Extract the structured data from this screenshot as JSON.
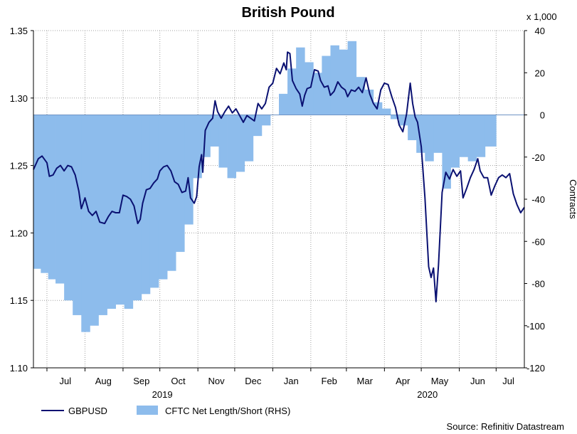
{
  "chart_data": {
    "type": "line",
    "title": "British Pound",
    "units_right": "x 1,000",
    "ylabel_right": "Contracts",
    "source": "Source: Refinitiv Datastream",
    "grid": true,
    "legend_position": "bottom-left",
    "colors": {
      "line": "#0a1172",
      "area": "#8dbcec",
      "grid": "#a0a0a0"
    },
    "years": [
      "2019",
      "2020"
    ],
    "months": [
      "Jul",
      "Aug",
      "Sep",
      "Oct",
      "Nov",
      "Dec",
      "Jan",
      "Feb",
      "Mar",
      "Apr",
      "May",
      "Jun",
      "Jul"
    ],
    "x_range": [
      "2019-06-20",
      "2020-07-24"
    ],
    "yleft": {
      "min": 1.1,
      "max": 1.35,
      "ticks": [
        "1.35",
        "1.30",
        "1.25",
        "1.20",
        "1.15",
        "1.10"
      ]
    },
    "yright": {
      "min": -120,
      "max": 40,
      "ticks": [
        "40",
        "20",
        "0",
        "-20",
        "-40",
        "-60",
        "-80",
        "-100",
        "-120"
      ]
    },
    "series": [
      {
        "name": "GBPUSD",
        "type": "line",
        "axis": "left",
        "points": [
          [
            "2019-06-20",
            1.247
          ],
          [
            "2019-06-24",
            1.255
          ],
          [
            "2019-06-27",
            1.257
          ],
          [
            "2019-07-01",
            1.252
          ],
          [
            "2019-07-03",
            1.242
          ],
          [
            "2019-07-06",
            1.243
          ],
          [
            "2019-07-09",
            1.248
          ],
          [
            "2019-07-12",
            1.25
          ],
          [
            "2019-07-15",
            1.246
          ],
          [
            "2019-07-18",
            1.25
          ],
          [
            "2019-07-21",
            1.249
          ],
          [
            "2019-07-24",
            1.243
          ],
          [
            "2019-07-27",
            1.231
          ],
          [
            "2019-07-29",
            1.218
          ],
          [
            "2019-08-01",
            1.226
          ],
          [
            "2019-08-04",
            1.216
          ],
          [
            "2019-08-07",
            1.213
          ],
          [
            "2019-08-10",
            1.216
          ],
          [
            "2019-08-13",
            1.208
          ],
          [
            "2019-08-17",
            1.207
          ],
          [
            "2019-08-20",
            1.212
          ],
          [
            "2019-08-23",
            1.216
          ],
          [
            "2019-08-26",
            1.215
          ],
          [
            "2019-08-29",
            1.215
          ],
          [
            "2019-09-01",
            1.228
          ],
          [
            "2019-09-04",
            1.227
          ],
          [
            "2019-09-07",
            1.225
          ],
          [
            "2019-09-10",
            1.22
          ],
          [
            "2019-09-13",
            1.207
          ],
          [
            "2019-09-15",
            1.21
          ],
          [
            "2019-09-17",
            1.222
          ],
          [
            "2019-09-20",
            1.232
          ],
          [
            "2019-09-23",
            1.233
          ],
          [
            "2019-09-26",
            1.237
          ],
          [
            "2019-09-29",
            1.24
          ],
          [
            "2019-10-01",
            1.246
          ],
          [
            "2019-10-04",
            1.249
          ],
          [
            "2019-10-07",
            1.25
          ],
          [
            "2019-10-10",
            1.246
          ],
          [
            "2019-10-13",
            1.238
          ],
          [
            "2019-10-16",
            1.236
          ],
          [
            "2019-10-19",
            1.23
          ],
          [
            "2019-10-22",
            1.231
          ],
          [
            "2019-10-24",
            1.241
          ],
          [
            "2019-10-26",
            1.226
          ],
          [
            "2019-10-29",
            1.222
          ],
          [
            "2019-10-31",
            1.227
          ],
          [
            "2019-11-02",
            1.249
          ],
          [
            "2019-11-04",
            1.258
          ],
          [
            "2019-11-05",
            1.245
          ],
          [
            "2019-11-07",
            1.276
          ],
          [
            "2019-11-10",
            1.282
          ],
          [
            "2019-11-13",
            1.285
          ],
          [
            "2019-11-15",
            1.298
          ],
          [
            "2019-11-17",
            1.29
          ],
          [
            "2019-11-20",
            1.285
          ],
          [
            "2019-11-23",
            1.29
          ],
          [
            "2019-11-26",
            1.294
          ],
          [
            "2019-11-29",
            1.289
          ],
          [
            "2019-12-02",
            1.292
          ],
          [
            "2019-12-05",
            1.287
          ],
          [
            "2019-12-08",
            1.282
          ],
          [
            "2019-12-11",
            1.287
          ],
          [
            "2019-12-14",
            1.285
          ],
          [
            "2019-12-17",
            1.283
          ],
          [
            "2019-12-20",
            1.296
          ],
          [
            "2019-12-23",
            1.292
          ],
          [
            "2019-12-26",
            1.296
          ],
          [
            "2019-12-29",
            1.308
          ],
          [
            "2020-01-01",
            1.311
          ],
          [
            "2020-01-04",
            1.322
          ],
          [
            "2020-01-07",
            1.318
          ],
          [
            "2020-01-10",
            1.326
          ],
          [
            "2020-01-12",
            1.321
          ],
          [
            "2020-01-13",
            1.334
          ],
          [
            "2020-01-15",
            1.333
          ],
          [
            "2020-01-17",
            1.313
          ],
          [
            "2020-01-20",
            1.307
          ],
          [
            "2020-01-23",
            1.303
          ],
          [
            "2020-01-25",
            1.294
          ],
          [
            "2020-01-27",
            1.302
          ],
          [
            "2020-01-29",
            1.307
          ],
          [
            "2020-02-01",
            1.308
          ],
          [
            "2020-02-04",
            1.321
          ],
          [
            "2020-02-07",
            1.32
          ],
          [
            "2020-02-09",
            1.313
          ],
          [
            "2020-02-12",
            1.308
          ],
          [
            "2020-02-15",
            1.309
          ],
          [
            "2020-02-17",
            1.302
          ],
          [
            "2020-02-20",
            1.305
          ],
          [
            "2020-02-23",
            1.312
          ],
          [
            "2020-02-26",
            1.308
          ],
          [
            "2020-02-29",
            1.306
          ],
          [
            "2020-03-02",
            1.301
          ],
          [
            "2020-03-05",
            1.306
          ],
          [
            "2020-03-08",
            1.305
          ],
          [
            "2020-03-11",
            1.308
          ],
          [
            "2020-03-14",
            1.304
          ],
          [
            "2020-03-17",
            1.315
          ],
          [
            "2020-03-20",
            1.303
          ],
          [
            "2020-03-23",
            1.296
          ],
          [
            "2020-03-26",
            1.292
          ],
          [
            "2020-03-29",
            1.306
          ],
          [
            "2020-04-01",
            1.311
          ],
          [
            "2020-04-04",
            1.31
          ],
          [
            "2020-04-07",
            1.301
          ],
          [
            "2020-04-10",
            1.293
          ],
          [
            "2020-04-13",
            1.28
          ],
          [
            "2020-04-16",
            1.275
          ],
          [
            "2020-04-19",
            1.288
          ],
          [
            "2020-04-22",
            1.311
          ],
          [
            "2020-04-24",
            1.296
          ],
          [
            "2020-04-26",
            1.286
          ],
          [
            "2020-04-28",
            1.282
          ],
          [
            "2020-05-01",
            1.264
          ],
          [
            "2020-05-04",
            1.226
          ],
          [
            "2020-05-07",
            1.175
          ],
          [
            "2020-05-09",
            1.167
          ],
          [
            "2020-05-11",
            1.174
          ],
          [
            "2020-05-13",
            1.149
          ],
          [
            "2020-05-15",
            1.176
          ],
          [
            "2020-05-18",
            1.23
          ],
          [
            "2020-05-21",
            1.245
          ],
          [
            "2020-05-24",
            1.24
          ],
          [
            "2020-05-27",
            1.247
          ],
          [
            "2020-05-30",
            1.242
          ],
          [
            "2020-06-02",
            1.246
          ],
          [
            "2020-06-04",
            1.226
          ],
          [
            "2020-06-07",
            1.233
          ],
          [
            "2020-06-10",
            1.241
          ],
          [
            "2020-06-13",
            1.247
          ],
          [
            "2020-06-16",
            1.255
          ],
          [
            "2020-06-18",
            1.246
          ],
          [
            "2020-06-21",
            1.241
          ],
          [
            "2020-06-24",
            1.241
          ],
          [
            "2020-06-27",
            1.228
          ],
          [
            "2020-06-30",
            1.235
          ],
          [
            "2020-07-03",
            1.241
          ],
          [
            "2020-07-06",
            1.243
          ],
          [
            "2020-07-09",
            1.241
          ],
          [
            "2020-07-12",
            1.244
          ],
          [
            "2020-07-15",
            1.229
          ],
          [
            "2020-07-18",
            1.221
          ],
          [
            "2020-07-21",
            1.215
          ],
          [
            "2020-07-24",
            1.219
          ]
        ]
      },
      {
        "name": "CFTC Net Length/Short (RHS)",
        "type": "step-area",
        "axis": "right",
        "points": [
          [
            "2019-06-20",
            -73
          ],
          [
            "2019-06-26",
            -75
          ],
          [
            "2019-07-02",
            -78
          ],
          [
            "2019-07-08",
            -80
          ],
          [
            "2019-07-15",
            -88
          ],
          [
            "2019-07-22",
            -95
          ],
          [
            "2019-07-29",
            -103
          ],
          [
            "2019-08-05",
            -100
          ],
          [
            "2019-08-12",
            -95
          ],
          [
            "2019-08-19",
            -92
          ],
          [
            "2019-08-26",
            -90
          ],
          [
            "2019-09-02",
            -92
          ],
          [
            "2019-09-09",
            -88
          ],
          [
            "2019-09-16",
            -85
          ],
          [
            "2019-09-23",
            -82
          ],
          [
            "2019-09-30",
            -78
          ],
          [
            "2019-10-07",
            -74
          ],
          [
            "2019-10-14",
            -65
          ],
          [
            "2019-10-21",
            -52
          ],
          [
            "2019-10-28",
            -30
          ],
          [
            "2019-11-04",
            -20
          ],
          [
            "2019-11-11",
            -15
          ],
          [
            "2019-11-18",
            -25
          ],
          [
            "2019-11-25",
            -30
          ],
          [
            "2019-12-02",
            -27
          ],
          [
            "2019-12-09",
            -22
          ],
          [
            "2019-12-16",
            -10
          ],
          [
            "2019-12-23",
            -5
          ],
          [
            "2019-12-30",
            0
          ],
          [
            "2020-01-06",
            10
          ],
          [
            "2020-01-13",
            22
          ],
          [
            "2020-01-20",
            32
          ],
          [
            "2020-01-27",
            25
          ],
          [
            "2020-02-03",
            20
          ],
          [
            "2020-02-10",
            28
          ],
          [
            "2020-02-17",
            33
          ],
          [
            "2020-02-24",
            31
          ],
          [
            "2020-03-02",
            35
          ],
          [
            "2020-03-09",
            18
          ],
          [
            "2020-03-16",
            12
          ],
          [
            "2020-03-23",
            6
          ],
          [
            "2020-03-30",
            3
          ],
          [
            "2020-04-06",
            -2
          ],
          [
            "2020-04-13",
            -5
          ],
          [
            "2020-04-20",
            -12
          ],
          [
            "2020-04-27",
            -18
          ],
          [
            "2020-05-04",
            -22
          ],
          [
            "2020-05-11",
            -18
          ],
          [
            "2020-05-18",
            -35
          ],
          [
            "2020-05-25",
            -25
          ],
          [
            "2020-06-01",
            -20
          ],
          [
            "2020-06-08",
            -22
          ],
          [
            "2020-06-15",
            -20
          ],
          [
            "2020-06-22",
            -15
          ]
        ]
      }
    ]
  }
}
